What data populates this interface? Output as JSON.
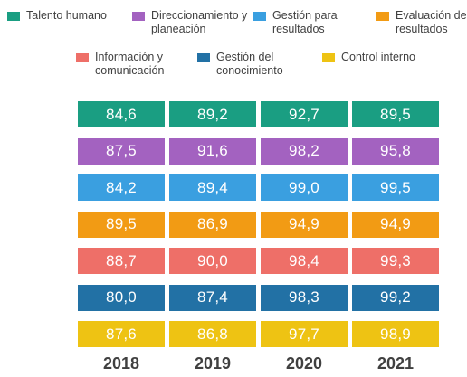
{
  "chart_data": {
    "type": "table",
    "title": "",
    "categories": [
      "2018",
      "2019",
      "2020",
      "2021"
    ],
    "series": [
      {
        "name": "Talento humano",
        "label": "Talento humano",
        "color": "#1a9e82",
        "values": [
          "84,6",
          "89,2",
          "92,7",
          "89,5"
        ]
      },
      {
        "name": "Direccionamiento y planeación",
        "label": "Direccionamiento y\nplaneación",
        "color": "#a362c0",
        "values": [
          "87,5",
          "91,6",
          "98,2",
          "95,8"
        ]
      },
      {
        "name": "Gestión para resultados",
        "label": "Gestión para\nresultados",
        "color": "#3a9fe0",
        "values": [
          "84,2",
          "89,4",
          "99,0",
          "99,5"
        ]
      },
      {
        "name": "Evaluación de resultados",
        "label": "Evaluación de\nresultados",
        "color": "#f29b14",
        "values": [
          "89,5",
          "86,9",
          "94,9",
          "94,9"
        ]
      },
      {
        "name": "Información y comunicación",
        "label": "Información y\ncomunicación",
        "color": "#ee6f68",
        "values": [
          "88,7",
          "90,0",
          "98,4",
          "99,3"
        ]
      },
      {
        "name": "Gestión del conocimiento",
        "label": "Gestión del\nconocimiento",
        "color": "#2271a5",
        "values": [
          "80,0",
          "87,4",
          "98,3",
          "99,2"
        ]
      },
      {
        "name": "Control interno",
        "label": "Control interno",
        "color": "#eec313",
        "values": [
          "87,6",
          "86,8",
          "97,7",
          "98,9"
        ]
      }
    ],
    "legend": "top"
  }
}
